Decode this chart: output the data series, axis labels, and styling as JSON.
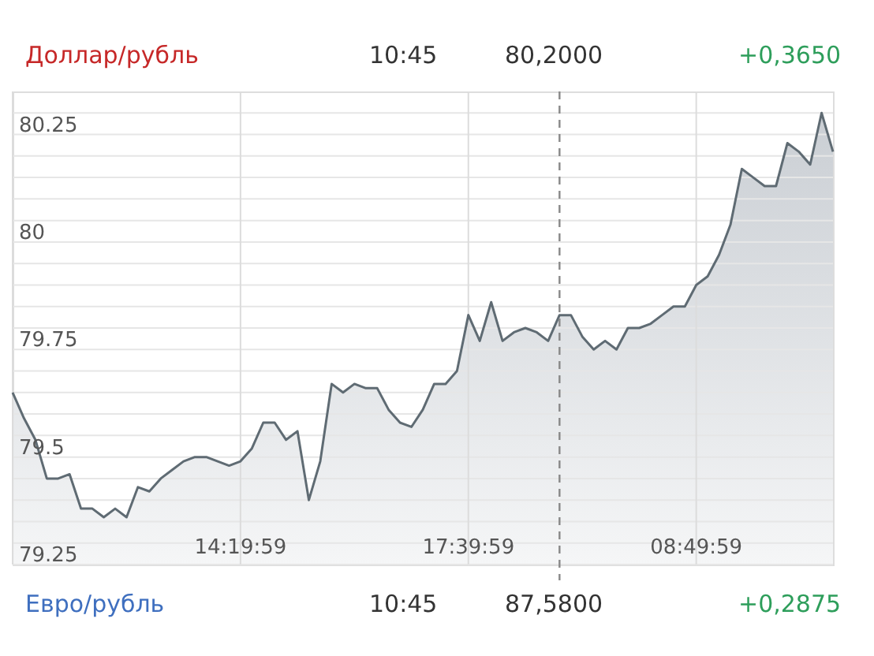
{
  "chart_data": {
    "type": "area",
    "title": "Доллар/рубль",
    "annotations": [
      "10:45",
      "80,2000",
      "+0,3650",
      "Евро/рубль",
      "10:45",
      "87,5800",
      "+0,2875"
    ],
    "categories": [
      null,
      null,
      null,
      null,
      null,
      null,
      null,
      null,
      null,
      null,
      null,
      null,
      null,
      null,
      null,
      null,
      null,
      null,
      null,
      null,
      "14:19:59",
      null,
      null,
      null,
      null,
      null,
      null,
      null,
      null,
      null,
      null,
      null,
      null,
      null,
      null,
      null,
      null,
      null,
      null,
      null,
      "17:39:59",
      null,
      null,
      null,
      null,
      null,
      null,
      null,
      null,
      null,
      null,
      null,
      null,
      null,
      null,
      null,
      null,
      null,
      null,
      null,
      "08:49:59",
      null,
      null,
      null,
      null,
      null,
      null,
      null,
      null,
      null,
      null,
      null,
      null
    ],
    "series": [
      {
        "color": "#5f6b73",
        "values": [
          79.65,
          79.59,
          79.54,
          79.45,
          79.45,
          79.46,
          79.38,
          79.38,
          79.36,
          79.38,
          79.36,
          79.43,
          79.42,
          79.45,
          79.47,
          79.49,
          79.5,
          79.5,
          79.49,
          79.48,
          79.49,
          79.52,
          79.58,
          79.58,
          79.54,
          79.56,
          79.4,
          79.49,
          79.67,
          79.65,
          79.67,
          79.66,
          79.66,
          79.61,
          79.58,
          79.57,
          79.61,
          79.67,
          79.67,
          79.7,
          79.83,
          79.77,
          79.86,
          79.77,
          79.79,
          79.8,
          79.79,
          79.77,
          79.83,
          79.83,
          79.78,
          79.75,
          79.77,
          79.75,
          79.8,
          79.8,
          79.81,
          79.83,
          79.85,
          79.85,
          79.9,
          79.92,
          79.97,
          80.04,
          80.17,
          80.15,
          80.13,
          80.13,
          80.23,
          80.21,
          80.18,
          80.3,
          80.21
        ]
      }
    ],
    "ylim": [
      79.25,
      80.35
    ],
    "yticks": [
      79.25,
      {
        "value": 79.3,
        "label": null
      },
      {
        "value": 79.35,
        "label": null
      },
      {
        "value": 79.4,
        "label": null
      },
      {
        "value": 79.45,
        "label": null
      },
      79.5,
      {
        "value": 79.55,
        "label": null
      },
      {
        "value": 79.6,
        "label": null
      },
      {
        "value": 79.65,
        "label": null
      },
      {
        "value": 79.7,
        "label": null
      },
      79.75,
      {
        "value": 79.8,
        "label": null
      },
      {
        "value": 79.85,
        "label": null
      },
      {
        "value": 79.9,
        "label": null
      },
      {
        "value": 79.95,
        "label": null
      },
      80,
      {
        "value": 80.05,
        "label": null
      },
      {
        "value": 80.1,
        "label": null
      },
      {
        "value": 80.15,
        "label": null
      },
      {
        "value": 80.2,
        "label": null
      },
      80.25,
      {
        "value": 80.3,
        "label": null
      }
    ],
    "grid": true
  }
}
